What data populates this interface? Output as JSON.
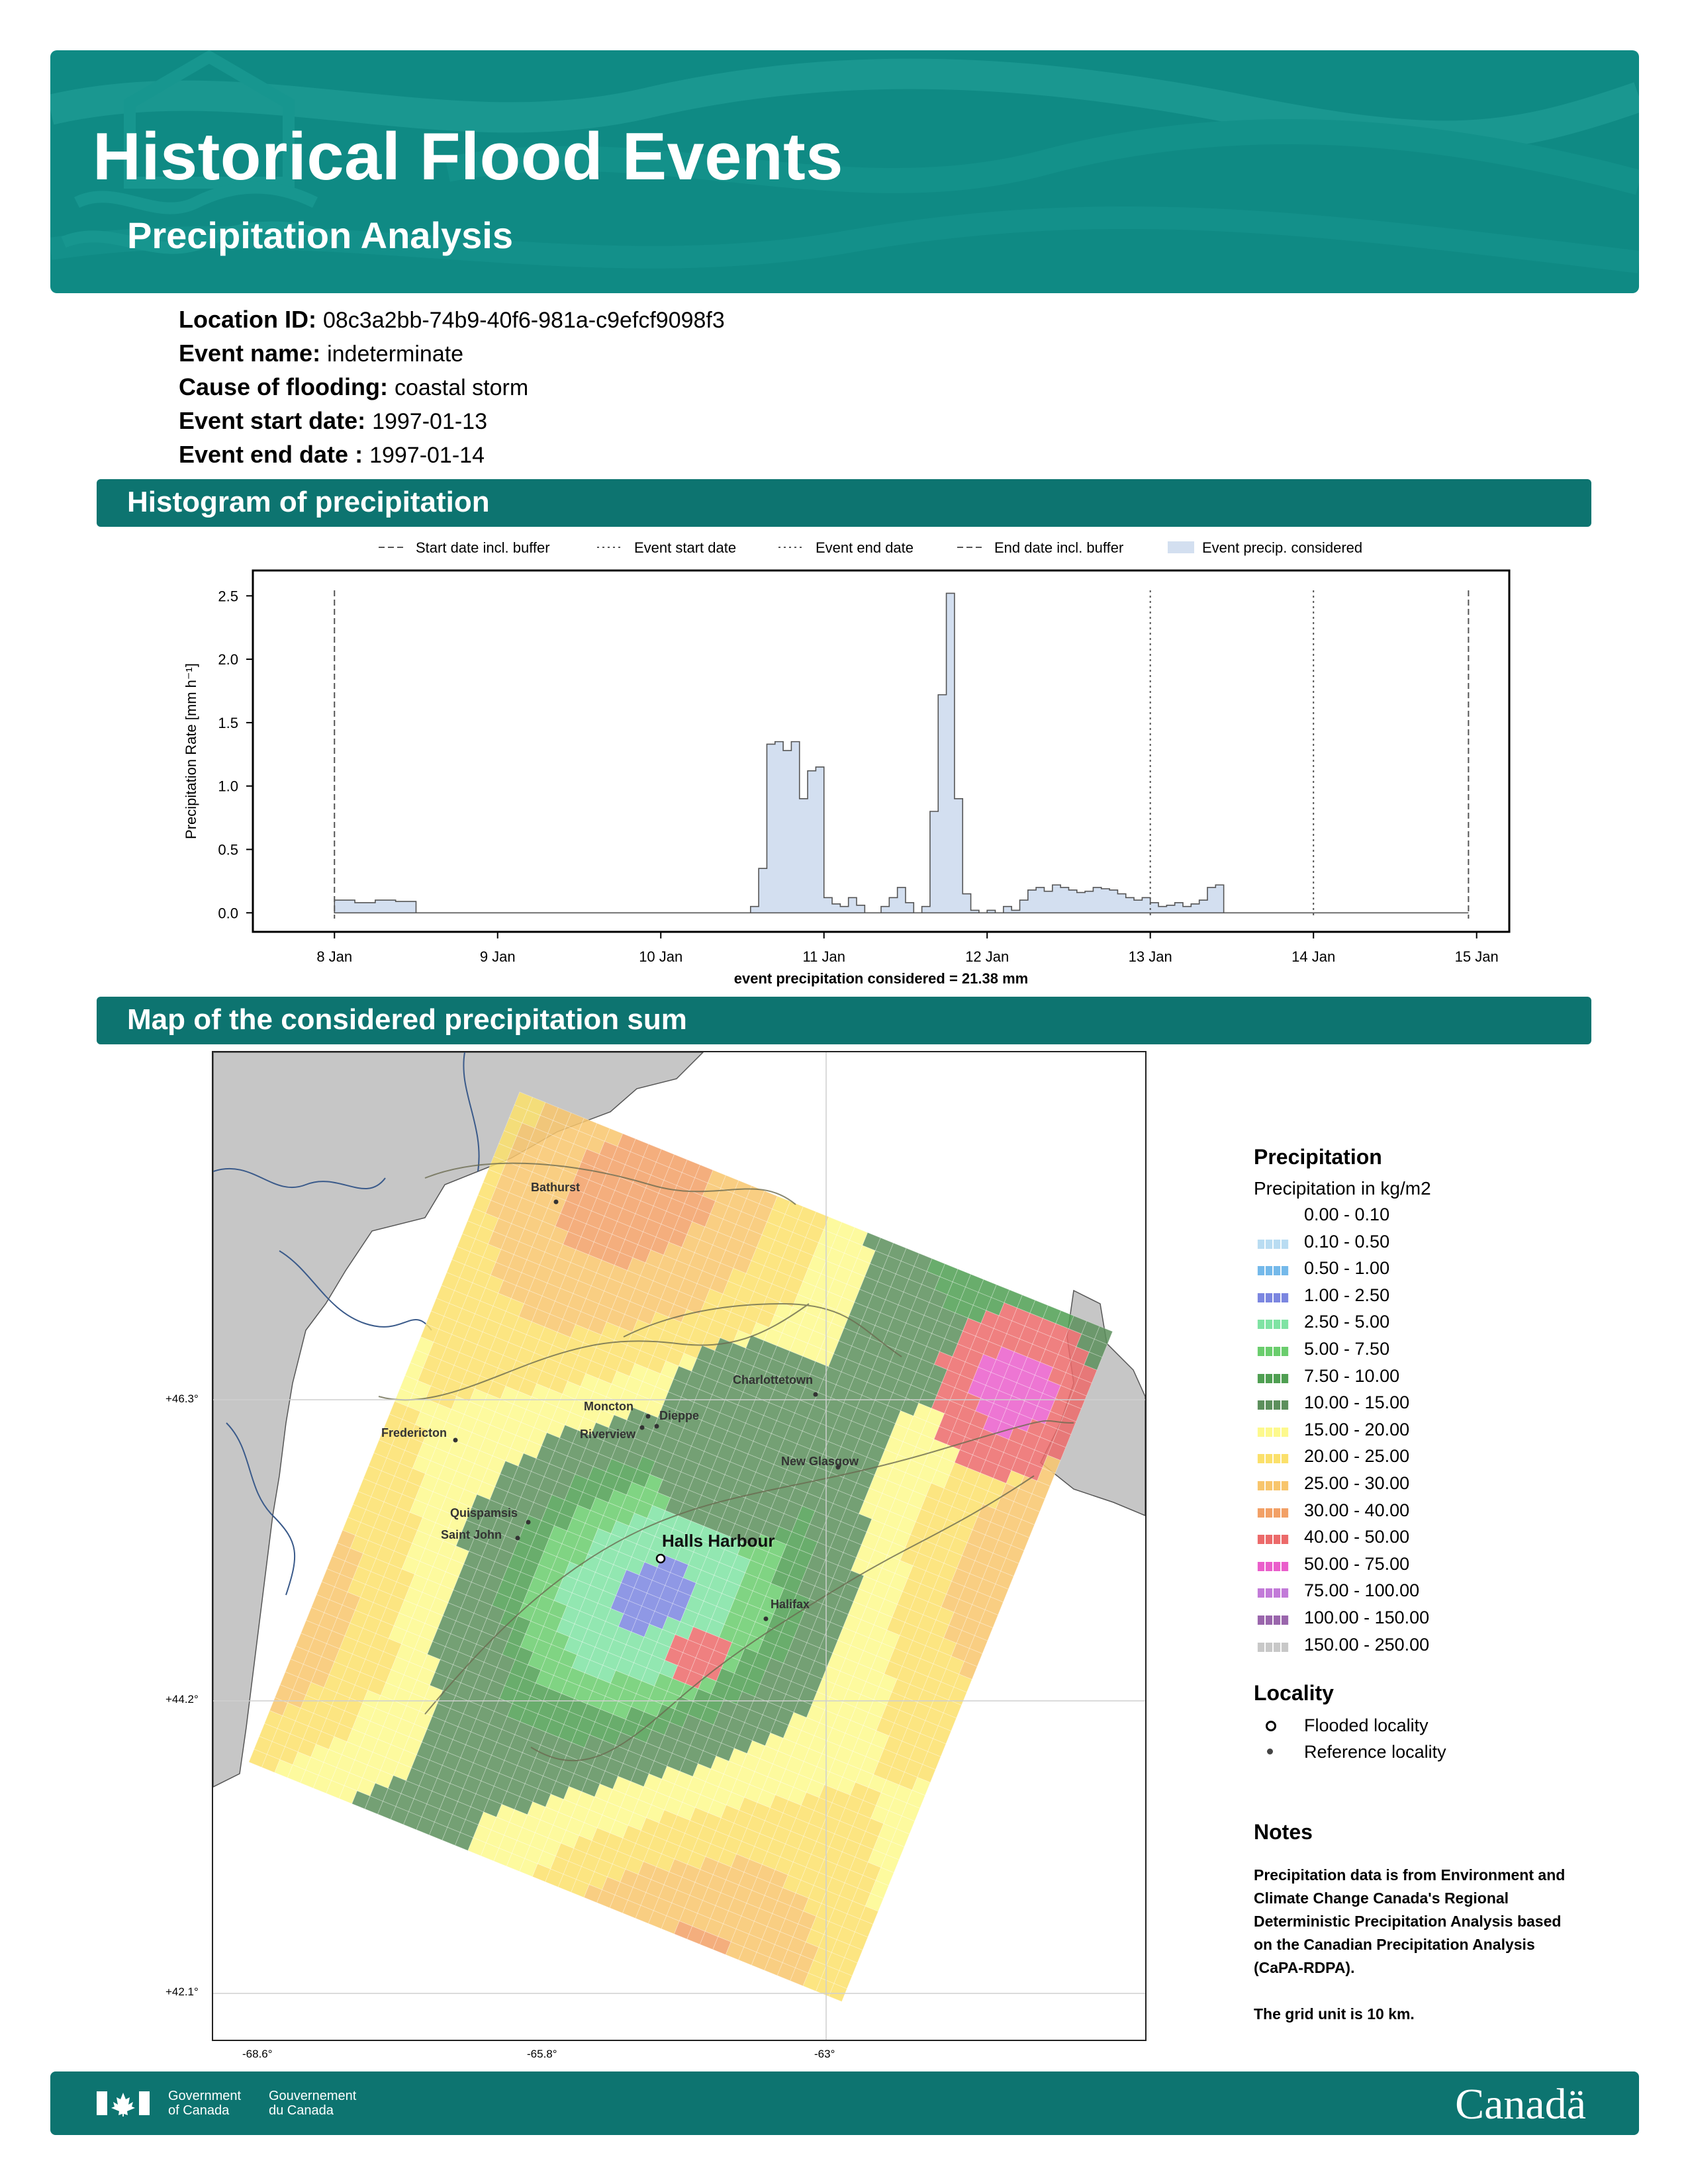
{
  "header": {
    "title": "Historical Flood Events",
    "subtitle": "Precipitation Analysis"
  },
  "event_info": [
    {
      "label": "Location ID:",
      "value": "08c3a2bb-74b9-40f6-981a-c9efcf9098f3"
    },
    {
      "label": "Event name:",
      "value": "indeterminate"
    },
    {
      "label": "Cause of flooding:",
      "value": "coastal storm"
    },
    {
      "label": "Event start date:",
      "value": "1997-01-13"
    },
    {
      "label": "Event end date :",
      "value": "1997-01-14"
    }
  ],
  "sections": {
    "histogram": "Histogram of precipitation",
    "map": "Map of the considered precipitation sum"
  },
  "chart_data": {
    "type": "area",
    "ylabel": "Precipitation Rate [mm h⁻¹]",
    "xlabel": "event precipitation considered = 21.38 mm",
    "x_ticks": [
      "8 Jan",
      "9 Jan",
      "10 Jan",
      "11 Jan",
      "12 Jan",
      "13 Jan",
      "14 Jan",
      "15 Jan"
    ],
    "y_ticks": [
      "0.0",
      "0.5",
      "1.0",
      "1.5",
      "2.0",
      "2.5"
    ],
    "ylim": [
      -0.15,
      2.7
    ],
    "xlim_days": [
      7.5,
      15.2
    ],
    "legend": [
      {
        "label": "Start date incl. buffer",
        "style": "dashed"
      },
      {
        "label": "Event start date",
        "style": "dotted"
      },
      {
        "label": "Event end date",
        "style": "dotted"
      },
      {
        "label": "End date incl. buffer",
        "style": "dashed"
      },
      {
        "label": "Event precip. considered",
        "style": "patch"
      }
    ],
    "vlines": [
      {
        "day": 8.0,
        "style": "dashed"
      },
      {
        "day": 13.0,
        "style": "dotted"
      },
      {
        "day": 14.0,
        "style": "dotted"
      },
      {
        "day": 14.95,
        "style": "dashed"
      }
    ],
    "series": [
      {
        "x_days": [
          8.0,
          8.125,
          8.25,
          8.375,
          8.5,
          8.625,
          8.75,
          8.875,
          9.0,
          9.5,
          10.0,
          10.5,
          10.55,
          10.6,
          10.65,
          10.7,
          10.75,
          10.8,
          10.85,
          10.9,
          10.95,
          11.0,
          11.05,
          11.1,
          11.15,
          11.2,
          11.25,
          11.3,
          11.35,
          11.4,
          11.45,
          11.5,
          11.55,
          11.6,
          11.65,
          11.7,
          11.75,
          11.8,
          11.85,
          11.9,
          11.95,
          12.0,
          12.05,
          12.1,
          12.15,
          12.2,
          12.25,
          12.3,
          12.35,
          12.4,
          12.45,
          12.5,
          12.55,
          12.6,
          12.65,
          12.7,
          12.75,
          12.8,
          12.85,
          12.9,
          12.95,
          13.0,
          13.05,
          13.1,
          13.15,
          13.2,
          13.25,
          13.3,
          13.35,
          13.4,
          13.45,
          13.5,
          14.0,
          14.5,
          14.95
        ],
        "values": [
          0.1,
          0.08,
          0.1,
          0.09,
          0.0,
          0.0,
          0.0,
          0.0,
          0.0,
          0.0,
          0.0,
          0.0,
          0.05,
          0.35,
          1.33,
          1.35,
          1.28,
          1.35,
          0.9,
          1.12,
          1.15,
          0.12,
          0.07,
          0.05,
          0.12,
          0.06,
          0.0,
          0.0,
          0.05,
          0.12,
          0.2,
          0.08,
          0.0,
          0.05,
          0.8,
          1.72,
          2.52,
          0.9,
          0.15,
          0.02,
          0.0,
          0.02,
          0.0,
          0.05,
          0.02,
          0.1,
          0.18,
          0.2,
          0.17,
          0.22,
          0.2,
          0.18,
          0.16,
          0.17,
          0.2,
          0.19,
          0.18,
          0.15,
          0.12,
          0.1,
          0.12,
          0.08,
          0.05,
          0.06,
          0.08,
          0.05,
          0.07,
          0.1,
          0.2,
          0.22,
          0.0,
          0.0,
          0.0,
          0.0,
          0.0
        ]
      }
    ]
  },
  "map": {
    "lat_labels": [
      "+46.3°",
      "+44.2°",
      "+42.1°"
    ],
    "lon_labels": [
      "-68.6°",
      "-65.8°",
      "-63°"
    ],
    "cities": [
      {
        "name": "Bathurst",
        "flooded": false
      },
      {
        "name": "Charlottetown",
        "flooded": false
      },
      {
        "name": "Moncton",
        "flooded": false
      },
      {
        "name": "Dieppe",
        "flooded": false
      },
      {
        "name": "Riverview",
        "flooded": false
      },
      {
        "name": "Fredericton",
        "flooded": false
      },
      {
        "name": "New Glasgow",
        "flooded": false
      },
      {
        "name": "Quispamsis",
        "flooded": false
      },
      {
        "name": "Saint John",
        "flooded": false
      },
      {
        "name": "Halls Harbour",
        "flooded": true
      },
      {
        "name": "Halifax",
        "flooded": false
      }
    ]
  },
  "legend": {
    "title": "Precipitation",
    "unit": "Precipitation in kg/m2",
    "classes": [
      {
        "range": "0.00 - 0.10",
        "color": "#ffffff"
      },
      {
        "range": "0.10 - 0.50",
        "color": "#b9dcf2"
      },
      {
        "range": "0.50 - 1.00",
        "color": "#74b9ea"
      },
      {
        "range": "1.00 - 2.50",
        "color": "#7b86e0"
      },
      {
        "range": "2.50 - 5.00",
        "color": "#7fe3a3"
      },
      {
        "range": "5.00 - 7.50",
        "color": "#6acd6d"
      },
      {
        "range": "7.50 - 10.00",
        "color": "#4f9f52"
      },
      {
        "range": "10.00 - 15.00",
        "color": "#5c8f5c"
      },
      {
        "range": "15.00 - 20.00",
        "color": "#fdf98d"
      },
      {
        "range": "20.00 - 25.00",
        "color": "#fbe06b"
      },
      {
        "range": "25.00 - 30.00",
        "color": "#f8c56c"
      },
      {
        "range": "30.00 - 40.00",
        "color": "#f2a066"
      },
      {
        "range": "40.00 - 50.00",
        "color": "#ec6a6a"
      },
      {
        "range": "50.00 - 75.00",
        "color": "#ea5ecb"
      },
      {
        "range": "75.00 - 100.00",
        "color": "#c27ad8"
      },
      {
        "range": "100.00 - 150.00",
        "color": "#9a66ac"
      },
      {
        "range": "150.00 - 250.00",
        "color": "#c8c8c8"
      }
    ],
    "locality_title": "Locality",
    "localities": [
      {
        "label": "Flooded locality",
        "kind": "flooded"
      },
      {
        "label": "Reference locality",
        "kind": "reference"
      }
    ],
    "notes_title": "Notes",
    "notes_lines": [
      "Precipitation data is from Environment and",
      "Climate Change Canada's Regional",
      "Deterministic Precipitation Analysis based",
      "on the Canadian Precipitation Analysis",
      "(CaPA-RDPA).",
      "",
      "The grid unit is 10 km."
    ]
  },
  "footer": {
    "gov_en_1": "Government",
    "gov_en_2": "of Canada",
    "gov_fr_1": "Gouvernement",
    "gov_fr_2": "du Canada",
    "wordmark": "Canadä"
  }
}
